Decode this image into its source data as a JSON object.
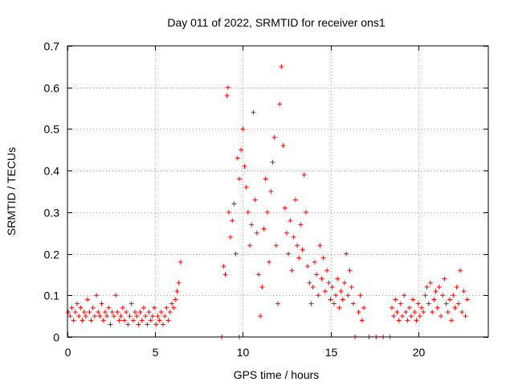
{
  "chart_data": {
    "type": "scatter",
    "title": "Day 011 of 2022, SRMTID for receiver ons1",
    "xlabel": "GPS time / hours",
    "ylabel": "SRMTID / TECUs",
    "xlim": [
      0,
      24
    ],
    "ylim": [
      0,
      0.7
    ],
    "xticks": [
      0,
      5,
      10,
      15,
      20
    ],
    "xtick_labels": [
      "0",
      "5",
      "10",
      "15",
      "20"
    ],
    "yticks": [
      0,
      0.1,
      0.2,
      0.3,
      0.4,
      0.5,
      0.6,
      0.7
    ],
    "ytick_labels": [
      "0",
      "0.1",
      "0.2",
      "0.3",
      "0.4",
      "0.5",
      "0.6",
      "0.7"
    ],
    "grid": true,
    "marker": "+",
    "color": "#ff0000",
    "series": [
      {
        "name": "SRMTID",
        "points": [
          [
            0.05,
            0.06
          ],
          [
            0.15,
            0.05
          ],
          [
            0.25,
            0.07
          ],
          [
            0.35,
            0.04
          ],
          [
            0.45,
            0.06
          ],
          [
            0.55,
            0.08
          ],
          [
            0.65,
            0.05
          ],
          [
            0.75,
            0.07
          ],
          [
            0.85,
            0.04
          ],
          [
            0.95,
            0.06
          ],
          [
            1.05,
            0.05
          ],
          [
            1.15,
            0.09
          ],
          [
            1.25,
            0.06
          ],
          [
            1.35,
            0.04
          ],
          [
            1.45,
            0.07
          ],
          [
            1.55,
            0.05
          ],
          [
            1.65,
            0.1
          ],
          [
            1.75,
            0.06
          ],
          [
            1.85,
            0.05
          ],
          [
            1.95,
            0.08
          ],
          [
            2.05,
            0.04
          ],
          [
            2.15,
            0.06
          ],
          [
            2.25,
            0.05
          ],
          [
            2.35,
            0.07
          ],
          [
            2.45,
            0.03
          ],
          [
            2.55,
            0.06
          ],
          [
            2.65,
            0.05
          ],
          [
            2.75,
            0.1
          ],
          [
            2.85,
            0.06
          ],
          [
            2.95,
            0.04
          ],
          [
            3.05,
            0.05
          ],
          [
            3.15,
            0.07
          ],
          [
            3.25,
            0.04
          ],
          [
            3.35,
            0.06
          ],
          [
            3.45,
            0.03
          ],
          [
            3.55,
            0.05
          ],
          [
            3.65,
            0.08
          ],
          [
            3.75,
            0.04
          ],
          [
            3.85,
            0.06
          ],
          [
            3.95,
            0.05
          ],
          [
            4.05,
            0.03
          ],
          [
            4.15,
            0.06
          ],
          [
            4.25,
            0.04
          ],
          [
            4.35,
            0.07
          ],
          [
            4.45,
            0.05
          ],
          [
            4.55,
            0.03
          ],
          [
            4.65,
            0.06
          ],
          [
            4.75,
            0.04
          ],
          [
            4.85,
            0.05
          ],
          [
            4.95,
            0.07
          ],
          [
            5.05,
            0.03
          ],
          [
            5.15,
            0.05
          ],
          [
            5.25,
            0.04
          ],
          [
            5.35,
            0.06
          ],
          [
            5.45,
            0.03
          ],
          [
            5.55,
            0.05
          ],
          [
            5.65,
            0.07
          ],
          [
            5.75,
            0.04
          ],
          [
            5.85,
            0.06
          ],
          [
            5.95,
            0.08
          ],
          [
            6.05,
            0.07
          ],
          [
            6.15,
            0.09
          ],
          [
            6.25,
            0.11
          ],
          [
            6.35,
            0.13
          ],
          [
            6.45,
            0.18
          ],
          [
            8.8,
            0.0
          ],
          [
            9.8,
            0.0
          ],
          [
            8.9,
            0.17
          ],
          [
            9.0,
            0.15
          ],
          [
            9.1,
            0.58
          ],
          [
            9.15,
            0.6
          ],
          [
            9.2,
            0.3
          ],
          [
            9.3,
            0.24
          ],
          [
            9.4,
            0.28
          ],
          [
            9.5,
            0.32
          ],
          [
            9.6,
            0.2
          ],
          [
            9.7,
            0.43
          ],
          [
            9.8,
            0.38
          ],
          [
            9.9,
            0.45
          ],
          [
            10.0,
            0.5
          ],
          [
            10.1,
            0.41
          ],
          [
            10.2,
            0.36
          ],
          [
            10.3,
            0.3
          ],
          [
            10.4,
            0.22
          ],
          [
            10.5,
            0.27
          ],
          [
            10.6,
            0.54
          ],
          [
            10.7,
            0.33
          ],
          [
            10.8,
            0.25
          ],
          [
            10.9,
            0.15
          ],
          [
            11.0,
            0.05
          ],
          [
            11.1,
            0.12
          ],
          [
            11.2,
            0.26
          ],
          [
            11.3,
            0.38
          ],
          [
            11.4,
            0.3
          ],
          [
            11.5,
            0.18
          ],
          [
            11.6,
            0.35
          ],
          [
            11.7,
            0.42
          ],
          [
            11.8,
            0.48
          ],
          [
            11.9,
            0.22
          ],
          [
            12.0,
            0.08
          ],
          [
            12.1,
            0.56
          ],
          [
            12.2,
            0.65
          ],
          [
            12.3,
            0.46
          ],
          [
            12.4,
            0.31
          ],
          [
            12.5,
            0.25
          ],
          [
            12.6,
            0.2
          ],
          [
            12.7,
            0.28
          ],
          [
            12.8,
            0.16
          ],
          [
            12.9,
            0.24
          ],
          [
            13.0,
            0.33
          ],
          [
            13.1,
            0.22
          ],
          [
            13.2,
            0.19
          ],
          [
            13.3,
            0.27
          ],
          [
            13.4,
            0.21
          ],
          [
            13.5,
            0.39
          ],
          [
            13.6,
            0.3
          ],
          [
            13.7,
            0.17
          ],
          [
            13.8,
            0.13
          ],
          [
            13.9,
            0.08
          ],
          [
            14.0,
            0.12
          ],
          [
            14.1,
            0.18
          ],
          [
            14.2,
            0.15
          ],
          [
            14.3,
            0.1
          ],
          [
            14.4,
            0.22
          ],
          [
            14.5,
            0.14
          ],
          [
            14.6,
            0.19
          ],
          [
            14.7,
            0.11
          ],
          [
            14.8,
            0.16
          ],
          [
            14.9,
            0.13
          ],
          [
            15.0,
            0.09
          ],
          [
            15.1,
            0.12
          ],
          [
            15.2,
            0.08
          ],
          [
            15.3,
            0.1
          ],
          [
            15.4,
            0.14
          ],
          [
            15.5,
            0.07
          ],
          [
            15.6,
            0.11
          ],
          [
            15.7,
            0.09
          ],
          [
            15.8,
            0.13
          ],
          [
            15.9,
            0.2
          ],
          [
            16.0,
            0.1
          ],
          [
            16.1,
            0.16
          ],
          [
            16.2,
            0.12
          ],
          [
            16.3,
            0.08
          ],
          [
            16.4,
            0.0
          ],
          [
            16.6,
            0.06
          ],
          [
            16.7,
            0.1
          ],
          [
            16.8,
            0.04
          ],
          [
            16.9,
            0.07
          ],
          [
            17.2,
            0.0
          ],
          [
            17.6,
            0.0
          ],
          [
            18.0,
            0.0
          ],
          [
            18.4,
            0.0
          ],
          [
            18.5,
            0.07
          ],
          [
            18.6,
            0.05
          ],
          [
            18.7,
            0.09
          ],
          [
            18.8,
            0.06
          ],
          [
            18.9,
            0.04
          ],
          [
            19.0,
            0.08
          ],
          [
            19.1,
            0.05
          ],
          [
            19.2,
            0.1
          ],
          [
            19.3,
            0.06
          ],
          [
            19.4,
            0.04
          ],
          [
            19.5,
            0.07
          ],
          [
            19.6,
            0.05
          ],
          [
            19.7,
            0.09
          ],
          [
            19.8,
            0.06
          ],
          [
            19.9,
            0.04
          ],
          [
            20.0,
            0.08
          ],
          [
            20.1,
            0.05
          ],
          [
            20.2,
            0.07
          ],
          [
            20.3,
            0.06
          ],
          [
            20.4,
            0.1
          ],
          [
            20.5,
            0.12
          ],
          [
            20.6,
            0.08
          ],
          [
            20.7,
            0.13
          ],
          [
            20.8,
            0.06
          ],
          [
            20.9,
            0.09
          ],
          [
            21.0,
            0.11
          ],
          [
            21.1,
            0.07
          ],
          [
            21.2,
            0.12
          ],
          [
            21.3,
            0.05
          ],
          [
            21.4,
            0.1
          ],
          [
            21.5,
            0.14
          ],
          [
            21.6,
            0.08
          ],
          [
            21.7,
            0.06
          ],
          [
            21.8,
            0.09
          ],
          [
            21.9,
            0.04
          ],
          [
            22.0,
            0.1
          ],
          [
            22.1,
            0.07
          ],
          [
            22.2,
            0.12
          ],
          [
            22.3,
            0.08
          ],
          [
            22.4,
            0.16
          ],
          [
            22.5,
            0.06
          ],
          [
            22.6,
            0.11
          ],
          [
            22.7,
            0.05
          ],
          [
            22.8,
            0.09
          ]
        ]
      }
    ]
  }
}
